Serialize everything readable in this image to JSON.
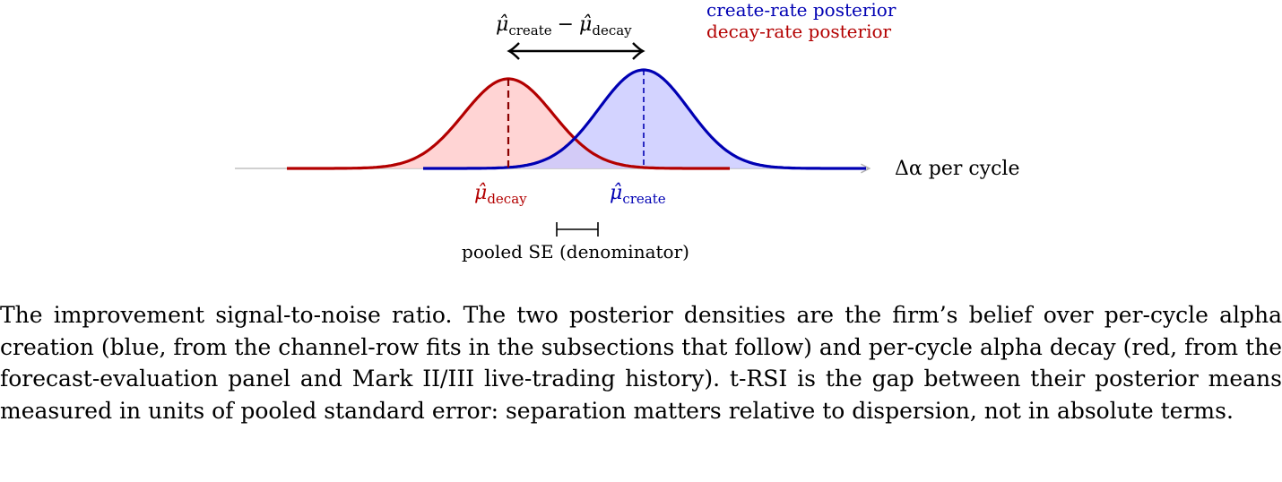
{
  "legend": {
    "create": {
      "text": "create-rate posterior",
      "color": "#0000b3"
    },
    "decay": {
      "text": "decay-rate posterior",
      "color": "#b30000"
    }
  },
  "axis": {
    "label_symbol": "Δα",
    "label_text": "per cycle"
  },
  "mu_symbol": "μ̂",
  "arrow_label": {
    "a": "create",
    "minus": "−",
    "b": "decay"
  },
  "markers": {
    "decay": "decay",
    "create": "create"
  },
  "pooled_se_label": "pooled SE (denominator)",
  "colors": {
    "create_line": "#0000b3",
    "create_fill": "#c8c8ff",
    "decay_line": "#b30000",
    "decay_fill": "#ffcccc",
    "axis": "#b3b3b3"
  },
  "caption": "The improvement signal-to-noise ratio. The two posterior densities are the firm’s belief over per-cycle alpha creation (blue, from the channel-row fits in the subsections that follow) and per-cycle alpha decay (red, from the forecast-evaluation panel and Mark II/III live-trading history). t-RSI is the gap between their posterior means measured in units of pooled standard error: separation matters relative to dispersion, not in absolute terms."
}
